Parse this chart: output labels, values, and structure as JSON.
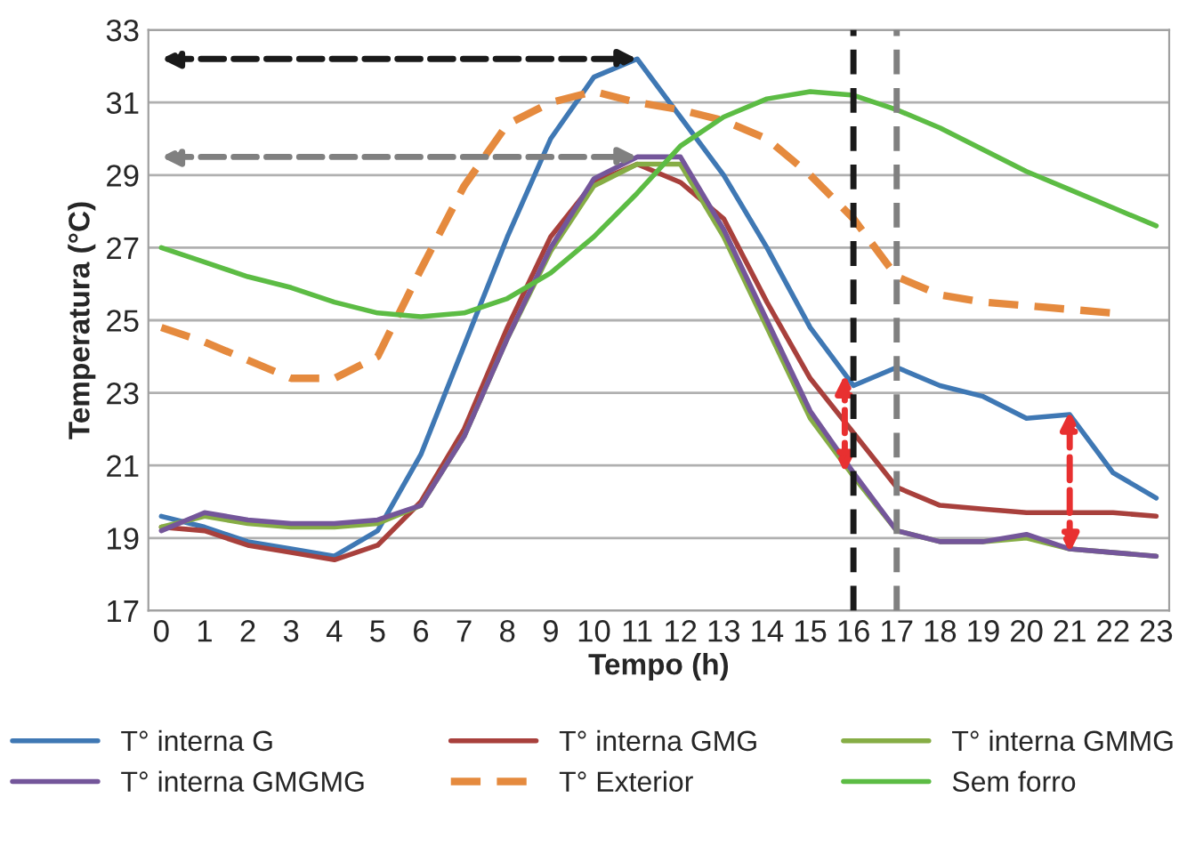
{
  "chart_data": {
    "type": "line",
    "xlabel": "Tempo (h)",
    "ylabel": "Temperatura (°C)",
    "categories": [
      "0",
      "1",
      "2",
      "3",
      "4",
      "5",
      "6",
      "7",
      "8",
      "9",
      "10",
      "11",
      "12",
      "13",
      "14",
      "15",
      "16",
      "17",
      "18",
      "19",
      "20",
      "21",
      "22",
      "23"
    ],
    "ylim": [
      17,
      33
    ],
    "yticks": [
      17,
      19,
      21,
      23,
      25,
      27,
      29,
      31,
      33
    ],
    "grid": "y",
    "legend": "bottom",
    "marker": "none",
    "series": [
      {
        "name": "T° interna G",
        "color": "#3f78b4",
        "values": [
          19.6,
          19.3,
          18.9,
          18.7,
          18.5,
          19.2,
          21.3,
          24.3,
          27.3,
          30.0,
          31.7,
          32.2,
          30.6,
          29.0,
          27.0,
          24.8,
          23.2,
          23.7,
          23.2,
          22.9,
          22.3,
          22.4,
          20.8,
          20.1
        ]
      },
      {
        "name": "T° interna GMG",
        "color": "#a8403c",
        "values": [
          19.3,
          19.2,
          18.8,
          18.6,
          18.4,
          18.8,
          20.0,
          22.0,
          24.8,
          27.3,
          28.8,
          29.3,
          28.8,
          27.8,
          25.5,
          23.4,
          21.9,
          20.4,
          19.9,
          19.8,
          19.7,
          19.7,
          19.7,
          19.6
        ]
      },
      {
        "name": "T° interna GMMG",
        "color": "#86ad45",
        "values": [
          19.3,
          19.6,
          19.4,
          19.3,
          19.3,
          19.4,
          19.9,
          21.8,
          24.5,
          26.9,
          28.7,
          29.3,
          29.3,
          27.3,
          24.8,
          22.3,
          20.7,
          19.2,
          18.9,
          18.9,
          19.0,
          18.7,
          18.6,
          18.5
        ]
      },
      {
        "name": "T° interna GMGMG",
        "color": "#74569a",
        "values": [
          19.2,
          19.7,
          19.5,
          19.4,
          19.4,
          19.5,
          19.9,
          21.8,
          24.5,
          27.0,
          28.9,
          29.5,
          29.5,
          27.5,
          25.0,
          22.5,
          20.8,
          19.2,
          18.9,
          18.9,
          19.1,
          18.7,
          18.6,
          18.5
        ]
      },
      {
        "name": "T° Exterior",
        "color": "#e58a3e",
        "line_style": "dashed",
        "values": [
          24.8,
          24.4,
          23.9,
          23.4,
          23.4,
          24.0,
          26.4,
          28.7,
          30.4,
          31.0,
          31.3,
          31.0,
          30.8,
          30.5,
          30.0,
          29.0,
          27.8,
          26.2,
          25.7,
          25.5,
          25.4,
          25.3,
          25.2,
          null
        ]
      },
      {
        "name": "Sem forro",
        "color": "#5cbc44",
        "values": [
          27.0,
          26.6,
          26.2,
          25.9,
          25.5,
          25.2,
          25.1,
          25.2,
          25.6,
          26.3,
          27.3,
          28.5,
          29.8,
          30.6,
          31.1,
          31.3,
          31.2,
          30.8,
          30.3,
          29.7,
          29.1,
          28.6,
          28.1,
          27.6
        ]
      }
    ],
    "ref_lines": [
      {
        "axis": "x",
        "value": "16",
        "color": "#1a1a1a",
        "line_style": "dashed"
      },
      {
        "axis": "x",
        "value": "17",
        "color": "#808080",
        "line_style": "dashed"
      }
    ]
  }
}
